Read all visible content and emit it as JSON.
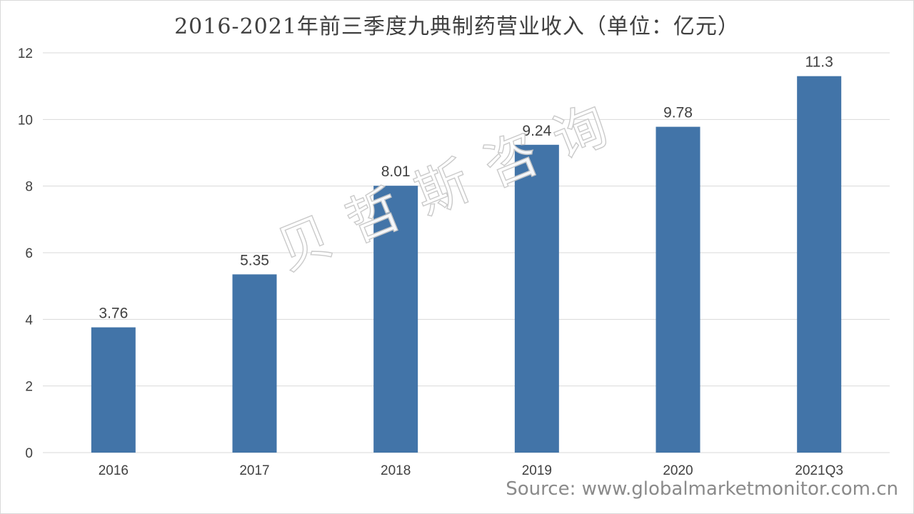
{
  "chart_data": {
    "type": "bar",
    "title": "2016-2021年前三季度九典制药营业收入（单位：亿元）",
    "categories": [
      "2016",
      "2017",
      "2018",
      "2019",
      "2020",
      "2021Q3"
    ],
    "series": [
      {
        "values": [
          3.76,
          5.35,
          8.01,
          9.24,
          9.78,
          11.3
        ]
      }
    ],
    "data_labels": [
      "3.76",
      "5.35",
      "8.01",
      "9.24",
      "9.78",
      "11.3"
    ],
    "ylim": [
      0,
      12
    ],
    "yticks": [
      0,
      2,
      4,
      6,
      8,
      10,
      12
    ],
    "grid": true,
    "xlabel": "",
    "ylabel": "",
    "colors": {
      "bar": "#4274a8",
      "grid": "#d9d9d9",
      "text": "#404040"
    }
  },
  "watermark": "贝哲斯咨询",
  "source": "Source: www.globalmarketmonitor.com.cn"
}
